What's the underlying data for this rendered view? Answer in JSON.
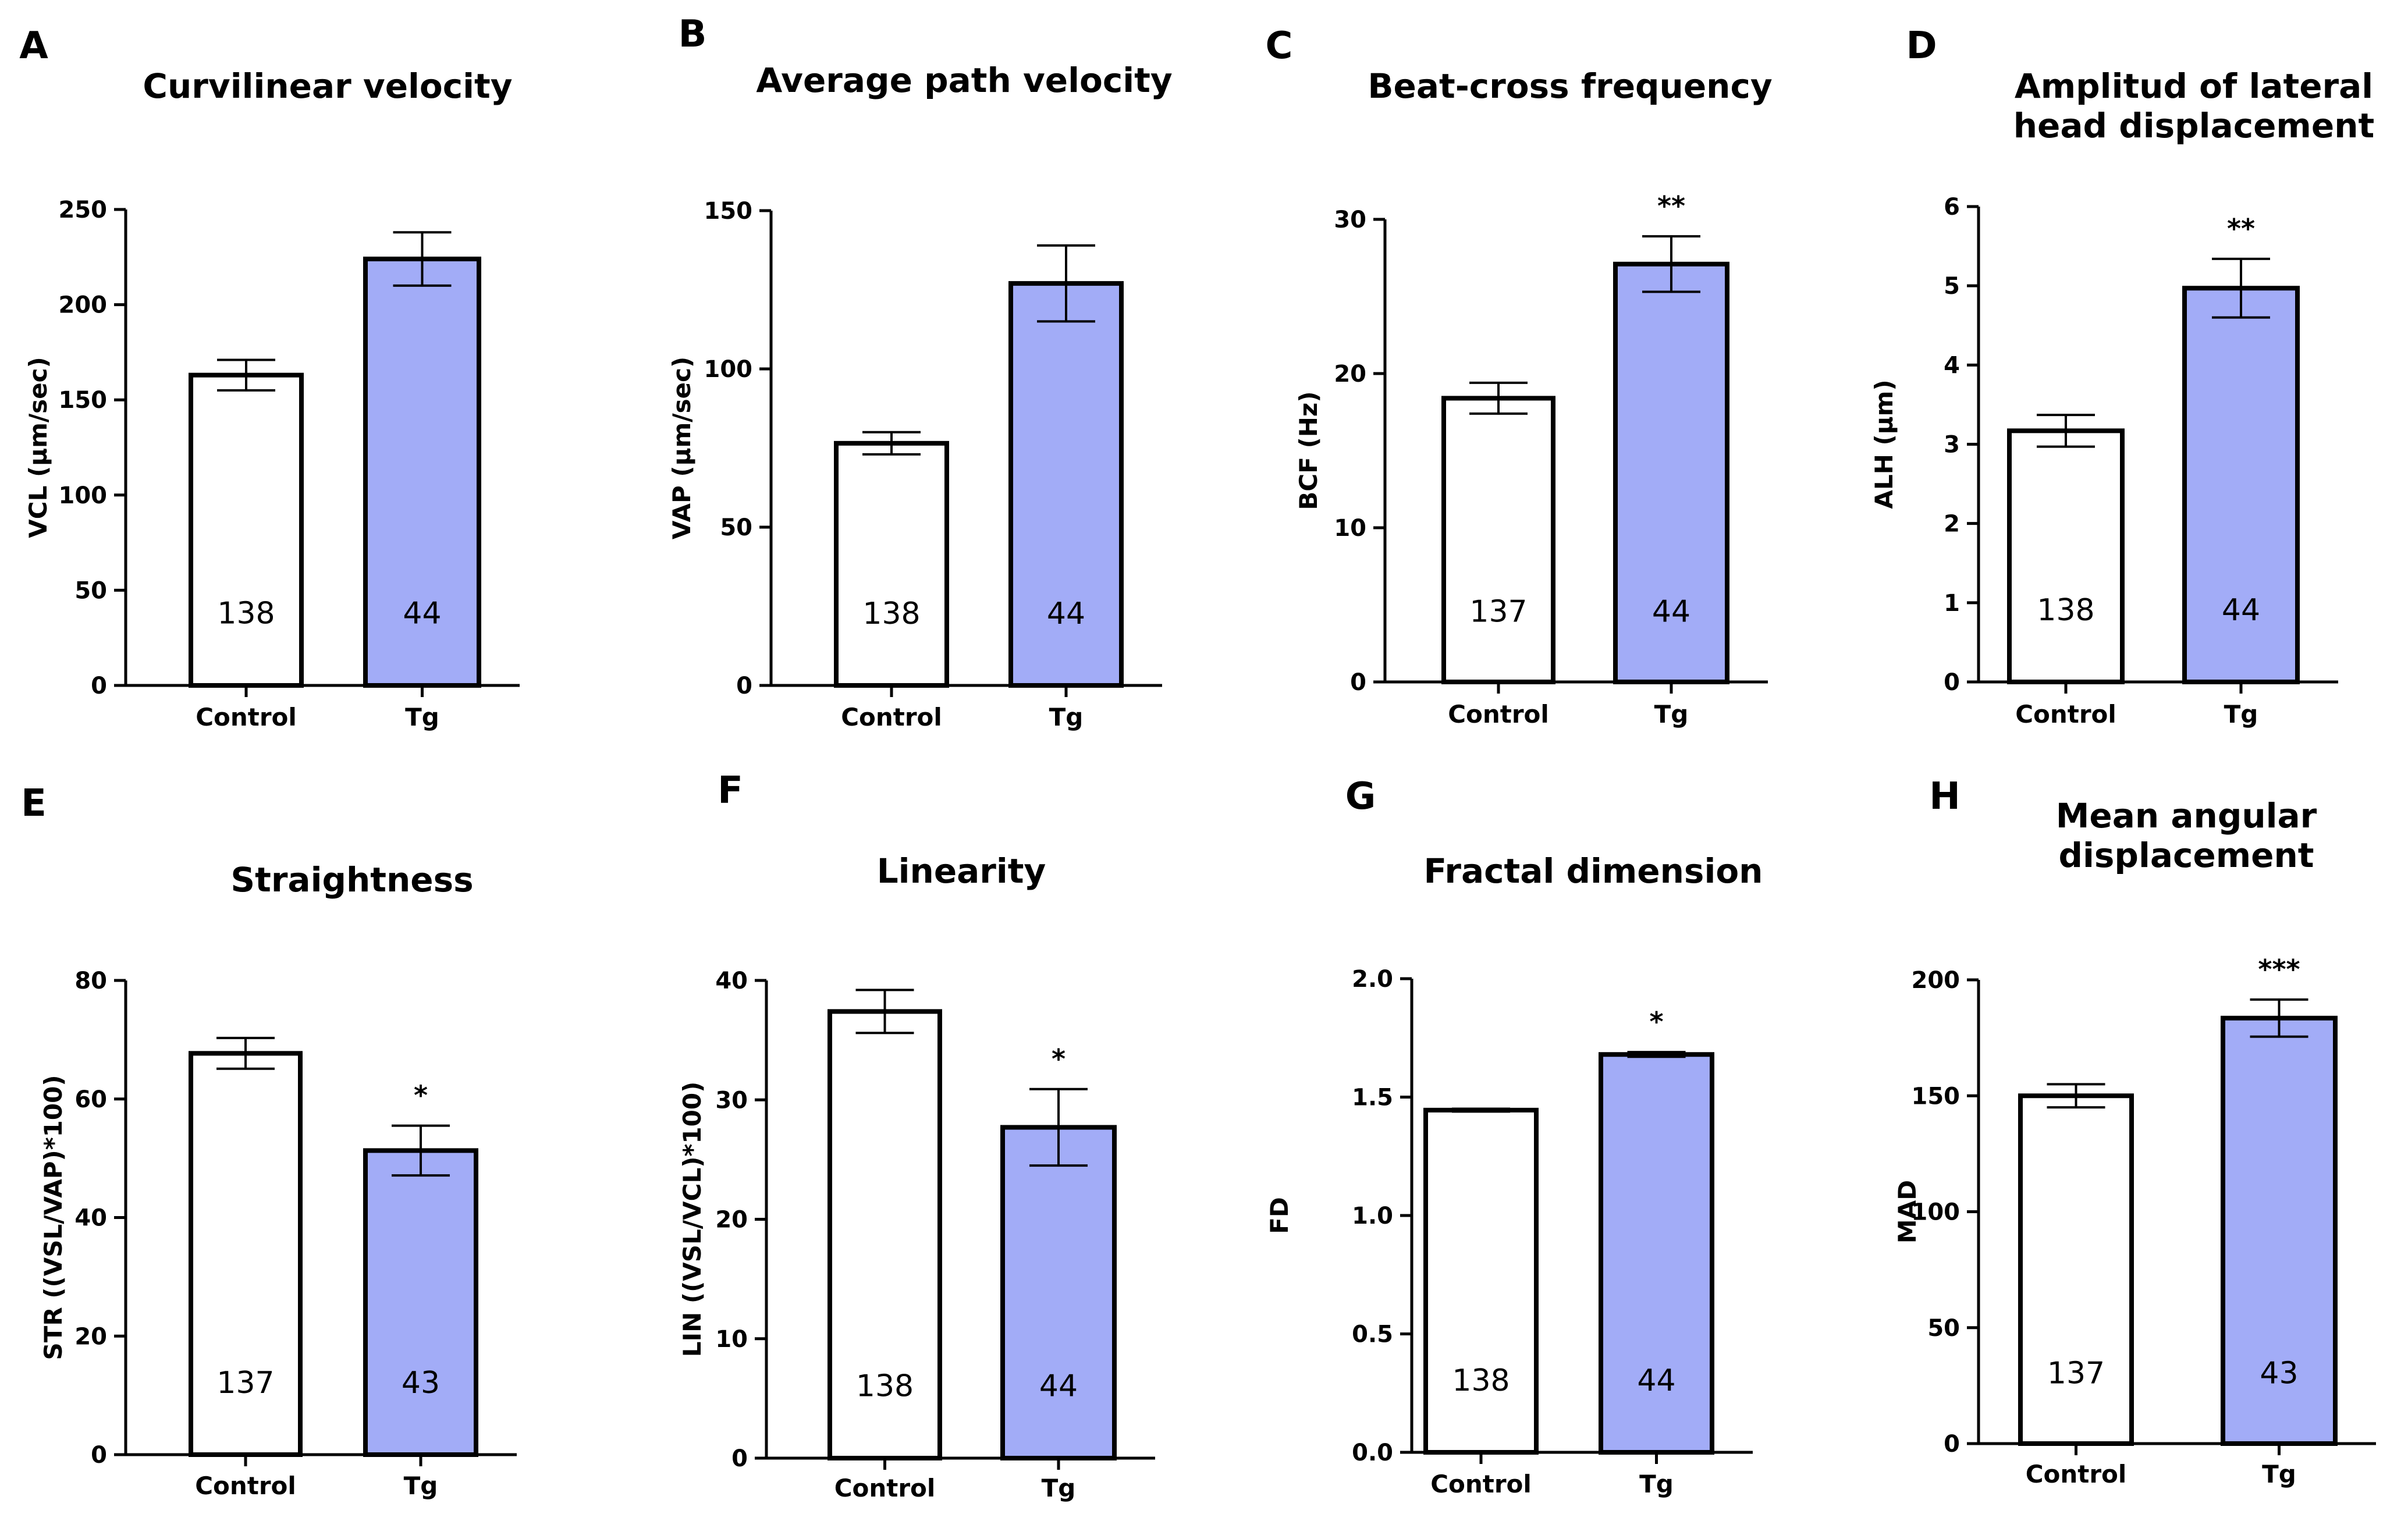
{
  "colors": {
    "control": "#ffffff",
    "tg": "#a2acf7",
    "stroke": "#000000"
  },
  "chart_data": [
    {
      "panel": "A",
      "type": "bar",
      "title": [
        "Curvilinear velocity"
      ],
      "ylabel": "VCL (µm/sec)",
      "ylim": [
        0,
        250
      ],
      "yticks": [
        "0",
        "50",
        "100",
        "150",
        "200",
        "250"
      ],
      "categories": [
        "Control",
        "Tg"
      ],
      "values": [
        163,
        224
      ],
      "errors": [
        8,
        14
      ],
      "n": [
        "138",
        "44"
      ],
      "significance": ""
    },
    {
      "panel": "B",
      "type": "bar",
      "title": [
        "Average path velocity"
      ],
      "ylabel": "VAP (µm/sec)",
      "ylim": [
        0,
        150
      ],
      "yticks": [
        "0",
        "50",
        "100",
        "150"
      ],
      "categories": [
        "Control",
        "Tg"
      ],
      "values": [
        76.5,
        127
      ],
      "errors": [
        3.5,
        12
      ],
      "n": [
        "138",
        "44"
      ],
      "significance": ""
    },
    {
      "panel": "C",
      "type": "bar",
      "title": [
        "Beat-cross frequency"
      ],
      "ylabel": "BCF (Hz)",
      "ylim": [
        0,
        30
      ],
      "yticks": [
        "0",
        "10",
        "20",
        "30"
      ],
      "categories": [
        "Control",
        "Tg"
      ],
      "values": [
        18.4,
        27.1
      ],
      "errors": [
        1.0,
        1.8
      ],
      "n": [
        "137",
        "44"
      ],
      "significance": "**"
    },
    {
      "panel": "D",
      "type": "bar",
      "title": [
        "Amplitud  of lateral",
        "head displacement"
      ],
      "ylabel": "ALH (µm)",
      "ylim": [
        0,
        6
      ],
      "yticks": [
        "0",
        "1",
        "2",
        "3",
        "4",
        "5",
        "6"
      ],
      "categories": [
        "Control",
        "Tg"
      ],
      "values": [
        3.17,
        4.97
      ],
      "errors": [
        0.2,
        0.37
      ],
      "n": [
        "138",
        "44"
      ],
      "significance": "**"
    },
    {
      "panel": "E",
      "type": "bar",
      "title": [
        "Straightness"
      ],
      "ylabel": "STR ((VSL/VAP)*100)",
      "ylim": [
        0,
        80
      ],
      "yticks": [
        "0",
        "20",
        "40",
        "60",
        "80"
      ],
      "categories": [
        "Control",
        "Tg"
      ],
      "values": [
        67.7,
        51.3
      ],
      "errors": [
        2.6,
        4.2
      ],
      "n": [
        "137",
        "43"
      ],
      "significance": "*"
    },
    {
      "panel": "F",
      "type": "bar",
      "title": [
        "Linearity"
      ],
      "ylabel": "LIN ((VSL/VCL)*100)",
      "ylim": [
        0,
        40
      ],
      "yticks": [
        "0",
        "10",
        "20",
        "30",
        "40"
      ],
      "categories": [
        "Control",
        "Tg"
      ],
      "values": [
        37.4,
        27.7
      ],
      "errors": [
        1.8,
        3.2
      ],
      "n": [
        "138",
        "44"
      ],
      "significance": "*"
    },
    {
      "panel": "G",
      "type": "bar",
      "title": [
        "Fractal dimension"
      ],
      "ylabel": "FD",
      "ylim": [
        0,
        2.0
      ],
      "yticks": [
        "0.0",
        "0.5",
        "1.0",
        "1.5",
        "2.0"
      ],
      "categories": [
        "Control",
        "Tg"
      ],
      "values": [
        1.445,
        1.68
      ],
      "errors": [
        0.006,
        0.01
      ],
      "n": [
        "138",
        "44"
      ],
      "significance": "*"
    },
    {
      "panel": "H",
      "type": "bar",
      "title": [
        "Mean angular",
        "displacement"
      ],
      "ylabel": "MAD",
      "ylim": [
        0,
        200
      ],
      "yticks": [
        "0",
        "50",
        "100",
        "150",
        "200"
      ],
      "categories": [
        "Control",
        "Tg"
      ],
      "values": [
        150,
        183.5
      ],
      "errors": [
        5,
        8
      ],
      "n": [
        "137",
        "43"
      ],
      "significance": "***"
    }
  ]
}
